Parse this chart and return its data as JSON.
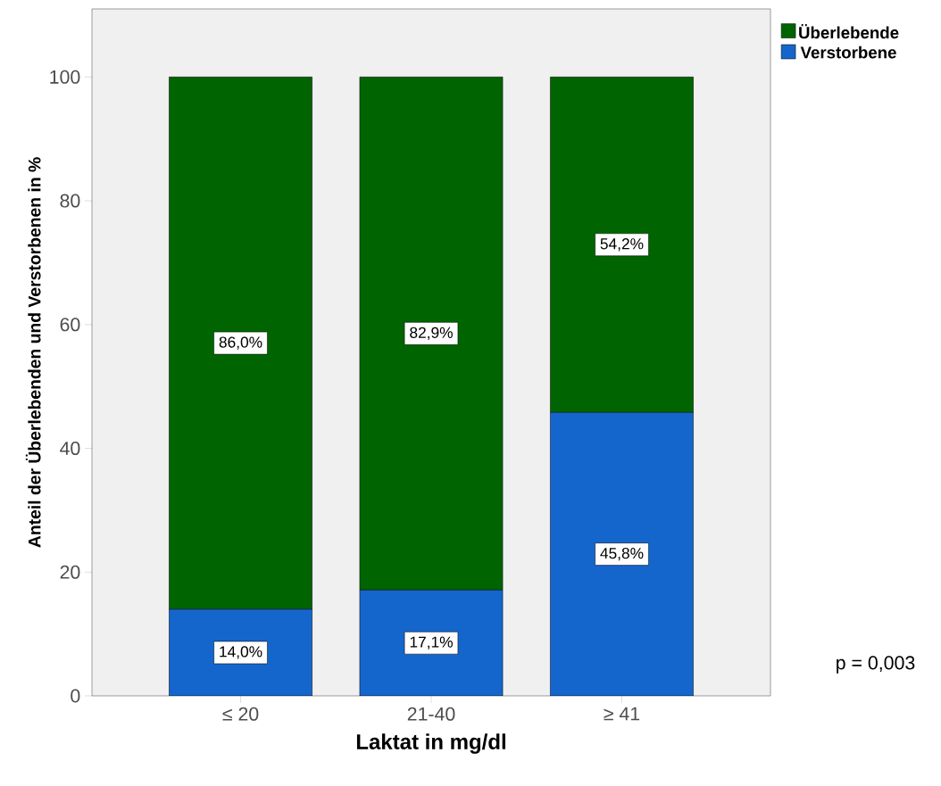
{
  "chart_data": {
    "type": "bar",
    "stacked": true,
    "xlabel": "Laktat in mg/dl",
    "ylabel": "Anteil der Überlebenden und Verstorbenen in %",
    "categories": [
      "≤ 20",
      "21-40",
      "≥ 41"
    ],
    "series": [
      {
        "name": "Verstorbene",
        "color": "#1466cc",
        "values": [
          14.0,
          17.1,
          45.8
        ],
        "value_labels": [
          "14,0%",
          "17,1%",
          "45,8%"
        ]
      },
      {
        "name": "Überlebende",
        "color": "#006400",
        "values": [
          86.0,
          82.9,
          54.2
        ],
        "value_labels": [
          "86,0%",
          "82,9%",
          "54,2%"
        ]
      }
    ],
    "ylim": [
      0,
      111
    ],
    "yticks": [
      0,
      20,
      40,
      60,
      80,
      100
    ],
    "legend": "top right",
    "annotations": [
      "p = 0,003"
    ]
  }
}
